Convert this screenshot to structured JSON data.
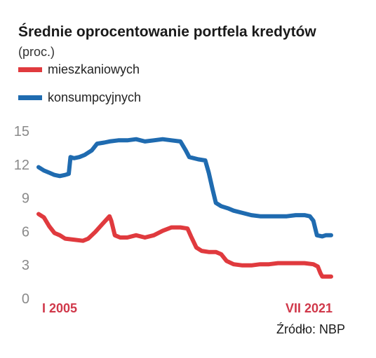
{
  "title": "Średnie oprocentowanie portfela kredytów",
  "unit": "(proc.)",
  "source": "Źródło: NBP",
  "chart_data": {
    "type": "line",
    "title": "Średnie oprocentowanie portfela kredytów",
    "ylabel": "(proc.)",
    "xlabel": "",
    "ylim": [
      0,
      15
    ],
    "yticks": [
      0,
      3,
      6,
      9,
      12,
      15
    ],
    "xlim": [
      2005.0,
      2021.5
    ],
    "xtick_labels": [
      {
        "x": 2005.0,
        "label": "I 2005"
      },
      {
        "x": 2021.5,
        "label": "VII 2021"
      }
    ],
    "grid": false,
    "legend": "top-left",
    "series": [
      {
        "name": "mieszkaniowych",
        "color": "#e03a3e",
        "points": [
          [
            2005.0,
            7.5
          ],
          [
            2005.3,
            7.2
          ],
          [
            2005.6,
            6.4
          ],
          [
            2005.9,
            5.8
          ],
          [
            2006.2,
            5.6
          ],
          [
            2006.5,
            5.3
          ],
          [
            2007.0,
            5.2
          ],
          [
            2007.5,
            5.1
          ],
          [
            2007.8,
            5.3
          ],
          [
            2008.2,
            5.9
          ],
          [
            2008.6,
            6.6
          ],
          [
            2009.0,
            7.3
          ],
          [
            2009.1,
            6.9
          ],
          [
            2009.3,
            5.6
          ],
          [
            2009.6,
            5.4
          ],
          [
            2010.0,
            5.4
          ],
          [
            2010.5,
            5.6
          ],
          [
            2011.0,
            5.4
          ],
          [
            2011.5,
            5.6
          ],
          [
            2012.0,
            6.0
          ],
          [
            2012.5,
            6.3
          ],
          [
            2013.0,
            6.3
          ],
          [
            2013.4,
            6.2
          ],
          [
            2013.6,
            5.5
          ],
          [
            2013.9,
            4.5
          ],
          [
            2014.2,
            4.2
          ],
          [
            2014.6,
            4.1
          ],
          [
            2015.0,
            4.1
          ],
          [
            2015.3,
            3.9
          ],
          [
            2015.6,
            3.3
          ],
          [
            2016.0,
            3.0
          ],
          [
            2016.5,
            2.9
          ],
          [
            2017.0,
            2.9
          ],
          [
            2017.5,
            3.0
          ],
          [
            2018.0,
            3.0
          ],
          [
            2018.5,
            3.1
          ],
          [
            2019.0,
            3.1
          ],
          [
            2019.5,
            3.1
          ],
          [
            2020.0,
            3.1
          ],
          [
            2020.5,
            3.0
          ],
          [
            2020.75,
            2.8
          ],
          [
            2020.9,
            2.2
          ],
          [
            2021.0,
            1.9
          ],
          [
            2021.2,
            1.9
          ],
          [
            2021.5,
            1.9
          ]
        ]
      },
      {
        "name": "konsumpcyjnych",
        "color": "#1f6bb0",
        "points": [
          [
            2005.0,
            11.7
          ],
          [
            2005.3,
            11.4
          ],
          [
            2005.6,
            11.2
          ],
          [
            2005.9,
            11.0
          ],
          [
            2006.2,
            10.9
          ],
          [
            2006.5,
            11.0
          ],
          [
            2006.7,
            11.1
          ],
          [
            2006.8,
            12.6
          ],
          [
            2007.0,
            12.5
          ],
          [
            2007.3,
            12.6
          ],
          [
            2007.6,
            12.8
          ],
          [
            2008.0,
            13.2
          ],
          [
            2008.3,
            13.8
          ],
          [
            2008.7,
            13.9
          ],
          [
            2009.0,
            14.0
          ],
          [
            2009.5,
            14.1
          ],
          [
            2010.0,
            14.1
          ],
          [
            2010.5,
            14.2
          ],
          [
            2011.0,
            14.0
          ],
          [
            2011.5,
            14.1
          ],
          [
            2012.0,
            14.2
          ],
          [
            2012.5,
            14.1
          ],
          [
            2013.0,
            14.0
          ],
          [
            2013.3,
            13.2
          ],
          [
            2013.5,
            12.6
          ],
          [
            2014.0,
            12.4
          ],
          [
            2014.4,
            12.3
          ],
          [
            2014.6,
            11.2
          ],
          [
            2014.8,
            9.8
          ],
          [
            2015.0,
            8.5
          ],
          [
            2015.3,
            8.2
          ],
          [
            2015.7,
            8.0
          ],
          [
            2016.0,
            7.8
          ],
          [
            2016.5,
            7.6
          ],
          [
            2017.0,
            7.4
          ],
          [
            2017.5,
            7.3
          ],
          [
            2018.0,
            7.3
          ],
          [
            2018.5,
            7.3
          ],
          [
            2019.0,
            7.3
          ],
          [
            2019.5,
            7.4
          ],
          [
            2020.0,
            7.4
          ],
          [
            2020.3,
            7.3
          ],
          [
            2020.5,
            6.9
          ],
          [
            2020.7,
            5.6
          ],
          [
            2021.0,
            5.5
          ],
          [
            2021.2,
            5.6
          ],
          [
            2021.5,
            5.6
          ]
        ]
      }
    ]
  }
}
